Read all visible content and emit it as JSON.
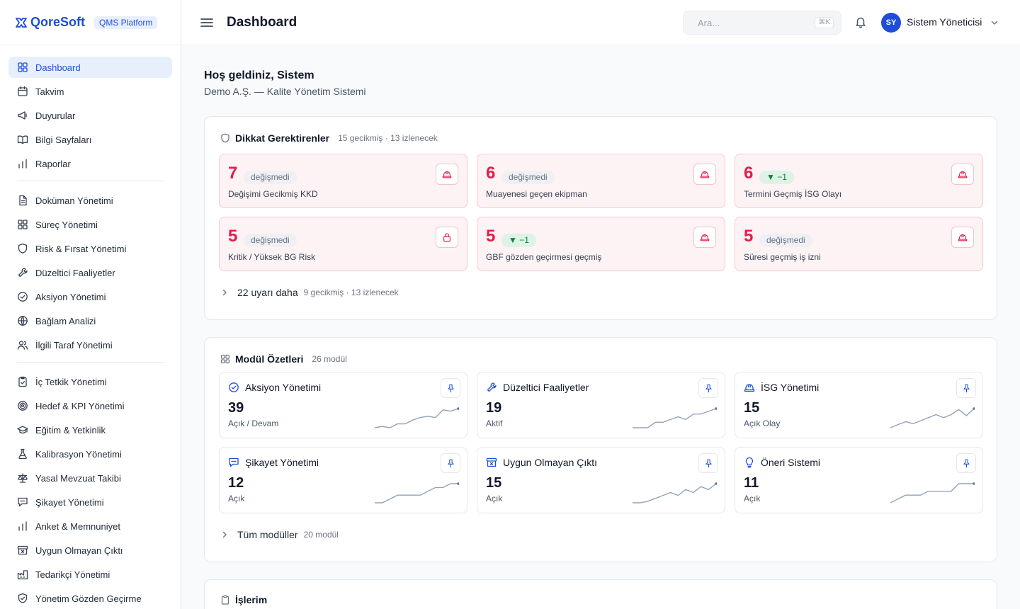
{
  "brand": {
    "name": "QoreSoft",
    "platform": "QMS Platform"
  },
  "sidebar": {
    "groups": [
      [
        {
          "label": "Dashboard",
          "icon": "grid-icon",
          "active": true
        },
        {
          "label": "Takvim",
          "icon": "calendar-icon"
        },
        {
          "label": "Duyurular",
          "icon": "megaphone-icon"
        },
        {
          "label": "Bilgi Sayfaları",
          "icon": "book-icon"
        },
        {
          "label": "Raporlar",
          "icon": "bar-chart-icon"
        }
      ],
      [
        {
          "label": "Doküman Yönetimi",
          "icon": "document-icon"
        },
        {
          "label": "Süreç Yönetimi",
          "icon": "grid-icon"
        },
        {
          "label": "Risk & Fırsat Yönetimi",
          "icon": "shield-icon"
        },
        {
          "label": "Düzeltici Faaliyetler",
          "icon": "wrench-icon"
        },
        {
          "label": "Aksiyon Yönetimi",
          "icon": "check-circle-icon"
        },
        {
          "label": "Bağlam Analizi",
          "icon": "globe-icon"
        },
        {
          "label": "İlgili Taraf Yönetimi",
          "icon": "users-icon"
        }
      ],
      [
        {
          "label": "İç Tetkik Yönetimi",
          "icon": "clipboard-check-icon"
        },
        {
          "label": "Hedef & KPI Yönetimi",
          "icon": "target-icon"
        },
        {
          "label": "Eğitim & Yetkinlik",
          "icon": "graduation-cap-icon"
        },
        {
          "label": "Kalibrasyon Yönetimi",
          "icon": "flask-icon"
        },
        {
          "label": "Yasal Mevzuat Takibi",
          "icon": "scale-icon"
        },
        {
          "label": "Şikayet Yönetimi",
          "icon": "message-icon"
        },
        {
          "label": "Anket & Memnuniyet",
          "icon": "bar-chart-icon"
        },
        {
          "label": "Uygun Olmayan Çıktı",
          "icon": "archive-x-icon"
        },
        {
          "label": "Tedarikçi Yönetimi",
          "icon": "factory-icon"
        },
        {
          "label": "Yönetim Gözden Geçirme",
          "icon": "shield-check-icon"
        }
      ]
    ]
  },
  "header": {
    "title": "Dashboard",
    "search_placeholder": "Ara...",
    "search_shortcut": "⌘K",
    "user_initials": "SY",
    "user_name": "Sistem Yöneticisi"
  },
  "welcome": {
    "title": "Hoş geldiniz, Sistem",
    "subtitle": "Demo A.Ş. — Kalite Yönetim Sistemi"
  },
  "attention": {
    "title": "Dikkat Gerektirenler",
    "meta": "15 gecikmiş · 13 izlenecek",
    "cards": [
      {
        "value": "7",
        "chip": "değişmedi",
        "chip_type": "neutral",
        "label": "Değişimi Gecikmiş KKD",
        "icon": "hard-hat-icon"
      },
      {
        "value": "6",
        "chip": "değişmedi",
        "chip_type": "neutral",
        "label": "Muayenesi geçen ekipman",
        "icon": "hard-hat-icon"
      },
      {
        "value": "6",
        "chip": "▼ −1",
        "chip_type": "down",
        "label": "Termini Geçmiş İSG Olayı",
        "icon": "hard-hat-icon"
      },
      {
        "value": "5",
        "chip": "değişmedi",
        "chip_type": "neutral",
        "label": "Kritik / Yüksek BG Risk",
        "icon": "lock-icon"
      },
      {
        "value": "5",
        "chip": "▼ −1",
        "chip_type": "down",
        "label": "GBF gözden geçirmesi geçmiş",
        "icon": "hard-hat-icon"
      },
      {
        "value": "5",
        "chip": "değişmedi",
        "chip_type": "neutral",
        "label": "Süresi geçmiş iş izni",
        "icon": "hard-hat-icon"
      }
    ],
    "more": {
      "label": "22 uyarı daha",
      "meta": "9 gecikmiş · 13 izlenecek"
    }
  },
  "modules": {
    "title": "Modül Özetleri",
    "meta": "26 modül",
    "cards": [
      {
        "title": "Aksiyon Yönetimi",
        "icon": "check-circle-icon",
        "value": "39",
        "label": "Açık / Devam",
        "trend": [
          2,
          3,
          2,
          5,
          5,
          8,
          10,
          11,
          10,
          16,
          15,
          17
        ]
      },
      {
        "title": "Düzeltici Faaliyetler",
        "icon": "wrench-icon",
        "value": "19",
        "label": "Aktif",
        "trend": [
          2,
          2,
          2,
          6,
          6,
          8,
          10,
          8,
          12,
          12,
          14,
          16
        ]
      },
      {
        "title": "İSG Yönetimi",
        "icon": "hard-hat-icon",
        "value": "15",
        "label": "Açık Olay",
        "trend": [
          4,
          7,
          10,
          8,
          11,
          14,
          17,
          14,
          17,
          22,
          16,
          23
        ]
      },
      {
        "title": "Şikayet Yönetimi",
        "icon": "message-icon",
        "value": "12",
        "label": "Açık",
        "trend": [
          1,
          1,
          3,
          5,
          5,
          5,
          5,
          7,
          9,
          9,
          11,
          11
        ]
      },
      {
        "title": "Uygun Olmayan Çıktı",
        "icon": "archive-x-icon",
        "value": "15",
        "label": "Açık",
        "trend": [
          3,
          3,
          4,
          6,
          8,
          10,
          8,
          12,
          10,
          14,
          12,
          16
        ]
      },
      {
        "title": "Öneri Sistemi",
        "icon": "lightbulb-icon",
        "value": "11",
        "label": "Açık",
        "trend": [
          1,
          2,
          3,
          3,
          3,
          4,
          4,
          4,
          4,
          6,
          6,
          6
        ]
      }
    ],
    "more": {
      "label": "Tüm modüller",
      "meta": "20 modül"
    }
  },
  "mywork": {
    "title": "İşlerim"
  }
}
